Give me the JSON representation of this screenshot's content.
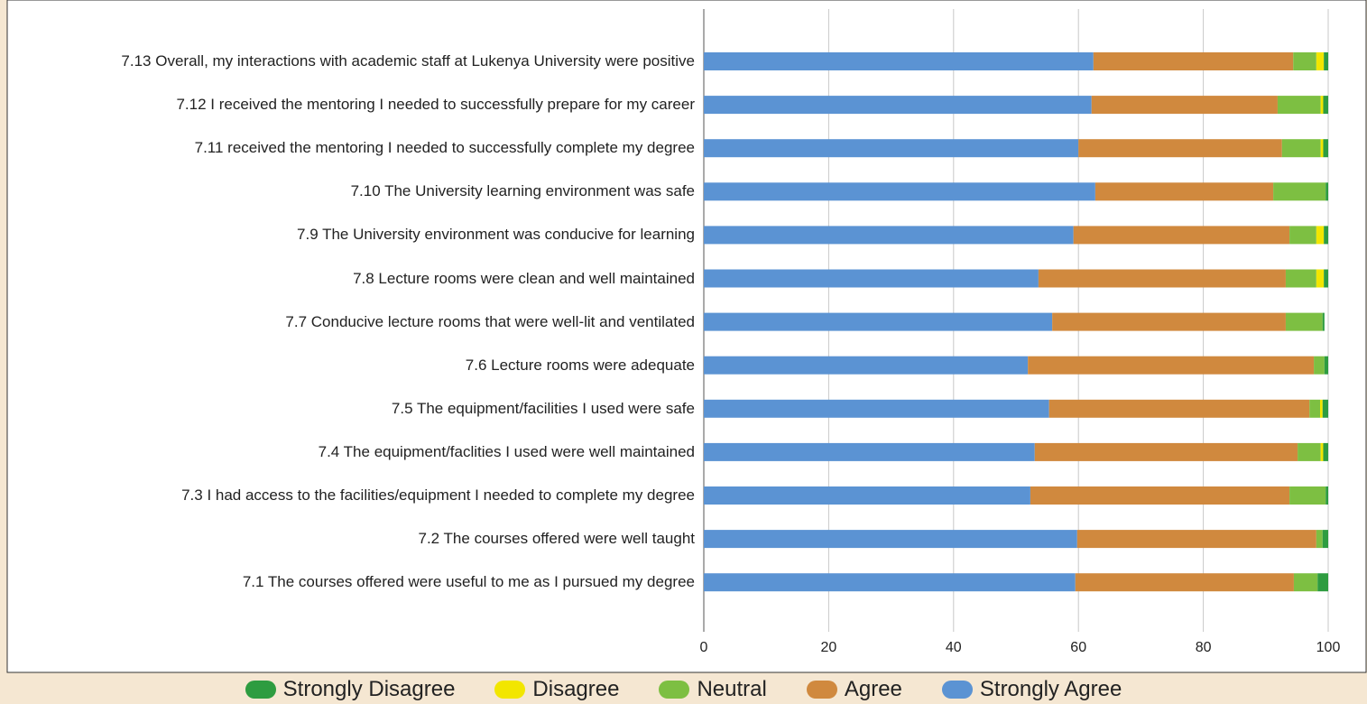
{
  "chart_data": {
    "type": "stacked_barh",
    "categories": [
      "7.13 Overall, my interactions with academic staff at Lukenya University were positive",
      "7.12 I received the mentoring I needed to successfully prepare for my career",
      "7.11 received the mentoring I needed to successfully complete my degree",
      "7.10 The University learning environment was safe",
      "7.9 The University environment was conducive for learning",
      "7.8 Lecture rooms were clean and well maintained",
      "7.7 Conducive lecture rooms that were well-lit and ventilated",
      "7.6 Lecture rooms were adequate",
      "7.5 The equipment/facilities I used were safe",
      "7.4 The equipment/faclities I used were well maintained",
      "7.3 I had access to the facilities/equipment I needed to complete my degree",
      "7.2 The courses offered were well taught",
      "7.1 The courses offered were useful to me as I pursued my degree"
    ],
    "series": [
      {
        "name": "Strongly Disagree",
        "color": "#2e9c40",
        "values": [
          0.7,
          0.8,
          0.8,
          0.4,
          0.7,
          0.7,
          0.3,
          0.6,
          0.9,
          0.8,
          0.4,
          0.9,
          1.7
        ]
      },
      {
        "name": "Disagree",
        "color": "#f2e600",
        "values": [
          1.2,
          0.4,
          0.4,
          0,
          1.2,
          1.2,
          0,
          0,
          0.4,
          0.4,
          0,
          0,
          0
        ]
      },
      {
        "name": "Neutral",
        "color": "#7dbf42",
        "values": [
          3.7,
          6.9,
          6.2,
          8.4,
          4.3,
          4.9,
          5.9,
          1.7,
          1.7,
          3.7,
          5.8,
          1.0,
          3.8
        ]
      },
      {
        "name": "Agree",
        "color": "#d0893e",
        "values": [
          32,
          29.8,
          32.6,
          28.5,
          34.6,
          39.6,
          37.4,
          45.8,
          41.7,
          42.1,
          41.5,
          38.3,
          35
        ]
      },
      {
        "name": "Strongly Agree",
        "color": "#5b93d3",
        "values": [
          62.4,
          62.1,
          60.0,
          62.7,
          59.2,
          53.6,
          55.8,
          51.9,
          55.3,
          53.0,
          52.3,
          59.8,
          59.5
        ]
      }
    ],
    "xlim": [
      0,
      100
    ],
    "xticks": [
      0,
      20,
      40,
      60,
      80,
      100
    ],
    "grid": true,
    "legend": "bottom"
  }
}
